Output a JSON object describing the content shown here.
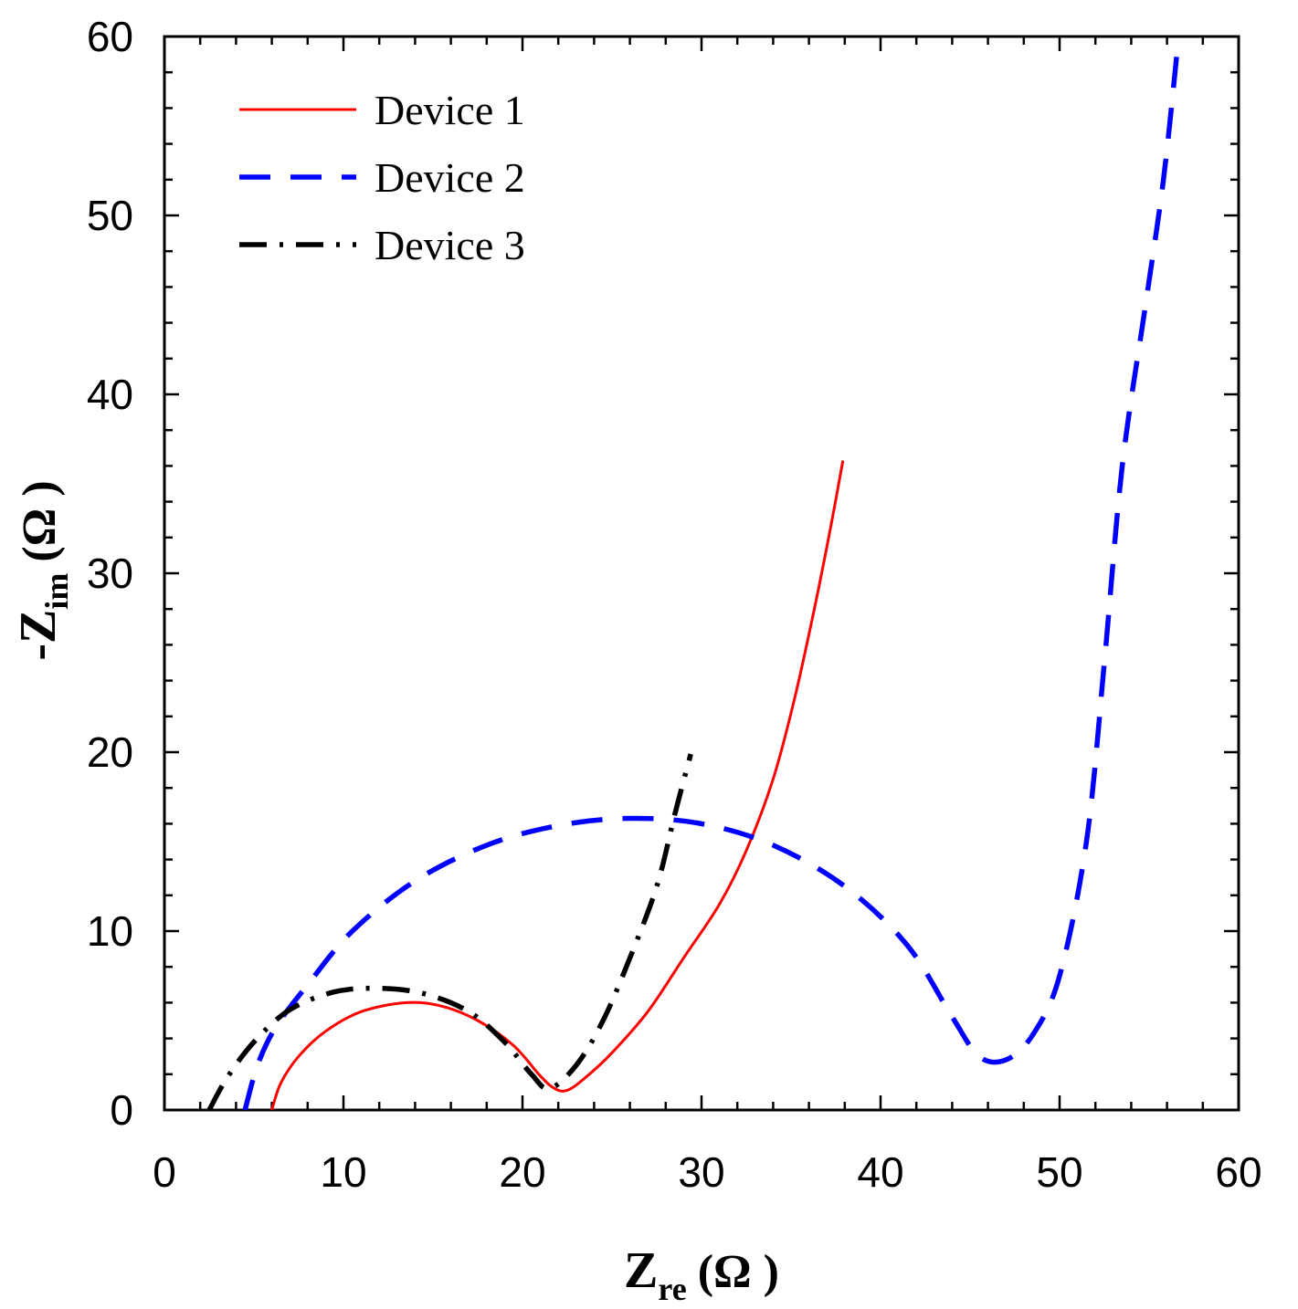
{
  "chart_data": {
    "type": "line",
    "title": "",
    "xlabel": {
      "main": "Z",
      "sub": "re",
      "unit": "(Ω )"
    },
    "ylabel": {
      "main": "-Z",
      "sub": "im",
      "unit": "(Ω )"
    },
    "xlim": [
      0,
      60
    ],
    "ylim": [
      0,
      60
    ],
    "xticks": [
      0,
      10,
      20,
      30,
      40,
      50,
      60
    ],
    "yticks": [
      0,
      10,
      20,
      30,
      40,
      50,
      60
    ],
    "grid": false,
    "legend_position": "top-left",
    "series": [
      {
        "name": "Device 1",
        "color": "#ff0000",
        "style": "solid",
        "points": [
          [
            6.0,
            0.0
          ],
          [
            6.5,
            1.5
          ],
          [
            7.5,
            3.0
          ],
          [
            9.0,
            4.4
          ],
          [
            11.0,
            5.5
          ],
          [
            13.5,
            6.0
          ],
          [
            15.5,
            5.8
          ],
          [
            17.5,
            5.0
          ],
          [
            19.5,
            3.6
          ],
          [
            21.0,
            1.9
          ],
          [
            21.8,
            1.2
          ],
          [
            22.5,
            1.1
          ],
          [
            23.5,
            1.8
          ],
          [
            25.0,
            3.2
          ],
          [
            27.0,
            5.5
          ],
          [
            29.0,
            8.5
          ],
          [
            31.0,
            11.5
          ],
          [
            32.5,
            14.5
          ],
          [
            34.0,
            18.5
          ],
          [
            35.2,
            23.0
          ],
          [
            36.3,
            28.0
          ],
          [
            37.2,
            32.5
          ],
          [
            37.9,
            36.3
          ]
        ]
      },
      {
        "name": "Device 2",
        "color": "#0000ff",
        "style": "dashed",
        "points": [
          [
            4.5,
            0.0
          ],
          [
            5.2,
            2.5
          ],
          [
            6.2,
            4.6
          ],
          [
            8.0,
            7.0
          ],
          [
            10.5,
            10.0
          ],
          [
            14.0,
            12.8
          ],
          [
            18.0,
            14.8
          ],
          [
            22.0,
            15.9
          ],
          [
            26.0,
            16.3
          ],
          [
            30.0,
            16.0
          ],
          [
            34.0,
            14.8
          ],
          [
            38.0,
            12.5
          ],
          [
            41.5,
            9.2
          ],
          [
            44.0,
            5.2
          ],
          [
            45.5,
            3.0
          ],
          [
            47.0,
            2.8
          ],
          [
            48.5,
            4.2
          ],
          [
            50.0,
            7.5
          ],
          [
            51.5,
            15.0
          ],
          [
            52.5,
            25.0
          ],
          [
            53.5,
            36.0
          ],
          [
            54.8,
            45.0
          ],
          [
            55.8,
            52.0
          ],
          [
            56.6,
            59.5
          ]
        ]
      },
      {
        "name": "Device 3",
        "color": "#000000",
        "style": "dashdot",
        "points": [
          [
            2.5,
            0.0
          ],
          [
            3.5,
            1.8
          ],
          [
            5.0,
            3.8
          ],
          [
            7.0,
            5.6
          ],
          [
            9.5,
            6.6
          ],
          [
            12.0,
            6.8
          ],
          [
            14.5,
            6.5
          ],
          [
            17.0,
            5.5
          ],
          [
            19.0,
            3.8
          ],
          [
            20.5,
            2.0
          ],
          [
            21.5,
            1.2
          ],
          [
            23.0,
            2.5
          ],
          [
            24.5,
            5.0
          ],
          [
            26.0,
            8.5
          ],
          [
            27.5,
            12.5
          ],
          [
            28.5,
            16.5
          ],
          [
            29.4,
            19.9
          ]
        ]
      }
    ]
  }
}
